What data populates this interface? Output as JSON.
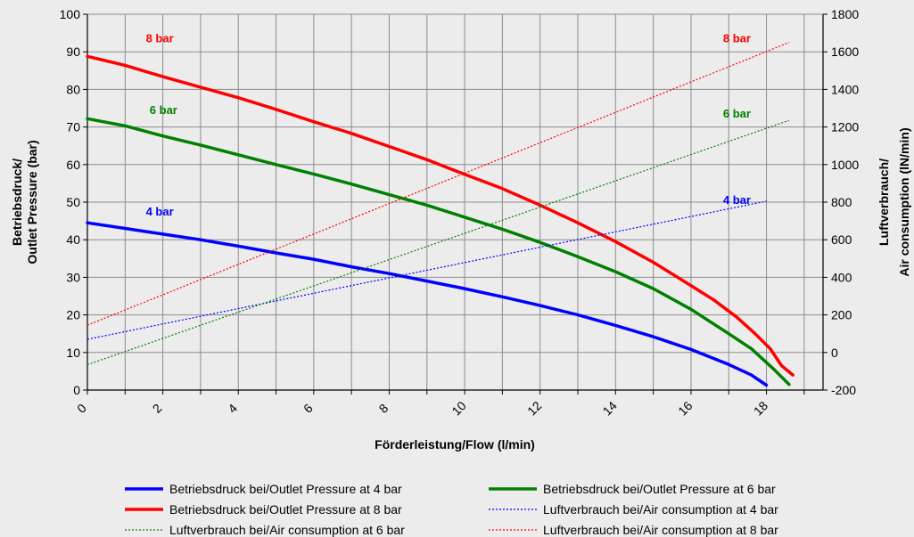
{
  "chart_data": {
    "type": "line",
    "xlabel": "Förderleistung/Flow (l/min)",
    "ylabel_left_line1": "Betriebsdruck/",
    "ylabel_left_line2": "Outlet Pressure (bar)",
    "ylabel_right_line1": "Luftverbrauch/",
    "ylabel_right_line2": "Air consumption (lN/min)",
    "xlim": [
      0,
      19.5
    ],
    "ylim_left": [
      0,
      100
    ],
    "ylim_right": [
      -200,
      1800
    ],
    "x_ticks": [
      "0",
      "2",
      "4",
      "6",
      "8",
      "10",
      "12",
      "14",
      "16",
      "18"
    ],
    "y_ticks_left": [
      "0",
      "10",
      "20",
      "30",
      "40",
      "50",
      "60",
      "70",
      "80",
      "90",
      "100"
    ],
    "y_ticks_right": [
      "-200",
      "0",
      "200",
      "400",
      "600",
      "800",
      "1000",
      "1200",
      "1400",
      "1600",
      "1800"
    ],
    "grid": true,
    "legend_position": "bottom",
    "series": [
      {
        "name": "Betriebsdruck bei/Outlet Pressure at 4 bar",
        "label": "4 bar",
        "axis": "left",
        "style": "solid",
        "color": "#0000ff",
        "points": [
          [
            0,
            44.5
          ],
          [
            1,
            43
          ],
          [
            2,
            41.5
          ],
          [
            3,
            40
          ],
          [
            4,
            38.3
          ],
          [
            5,
            36.5
          ],
          [
            6,
            34.8
          ],
          [
            7,
            32.8
          ],
          [
            8,
            31
          ],
          [
            9,
            29
          ],
          [
            10,
            27
          ],
          [
            11,
            24.8
          ],
          [
            12,
            22.5
          ],
          [
            13,
            20
          ],
          [
            14,
            17.2
          ],
          [
            15,
            14.2
          ],
          [
            16,
            10.8
          ],
          [
            17,
            6.8
          ],
          [
            17.6,
            4
          ],
          [
            18,
            1.3
          ]
        ]
      },
      {
        "name": "Betriebsdruck bei/Outlet Pressure at 6 bar",
        "label": "6 bar",
        "axis": "left",
        "style": "solid",
        "color": "#008000",
        "points": [
          [
            0,
            72.2
          ],
          [
            1,
            70.3
          ],
          [
            2,
            67.6
          ],
          [
            3,
            65.2
          ],
          [
            4,
            62.6
          ],
          [
            5,
            60
          ],
          [
            6,
            57.5
          ],
          [
            7,
            54.8
          ],
          [
            8,
            52
          ],
          [
            9,
            49.2
          ],
          [
            10,
            46
          ],
          [
            11,
            42.8
          ],
          [
            12,
            39.3
          ],
          [
            13,
            35.5
          ],
          [
            14,
            31.5
          ],
          [
            15,
            27
          ],
          [
            16,
            21.5
          ],
          [
            17,
            15
          ],
          [
            17.6,
            11
          ],
          [
            18.2,
            5.5
          ],
          [
            18.6,
            1.5
          ]
        ]
      },
      {
        "name": "Betriebsdruck bei/Outlet Pressure at 8 bar",
        "label": "8 bar",
        "axis": "left",
        "style": "solid",
        "color": "#ff0000",
        "points": [
          [
            0,
            88.8
          ],
          [
            1,
            86.4
          ],
          [
            2,
            83.4
          ],
          [
            3,
            80.6
          ],
          [
            4,
            77.8
          ],
          [
            5,
            74.7
          ],
          [
            6,
            71.4
          ],
          [
            7,
            68.3
          ],
          [
            8,
            64.8
          ],
          [
            9,
            61.3
          ],
          [
            10,
            57.4
          ],
          [
            11,
            53.6
          ],
          [
            12,
            49.2
          ],
          [
            13,
            44.5
          ],
          [
            14,
            39.5
          ],
          [
            15,
            34
          ],
          [
            16,
            27.8
          ],
          [
            16.6,
            24
          ],
          [
            17.2,
            19.5
          ],
          [
            17.7,
            15
          ],
          [
            18.1,
            11
          ],
          [
            18.4,
            6.5
          ],
          [
            18.7,
            4
          ]
        ]
      },
      {
        "name": "Luftverbrauch bei/Air consumption at 4 bar",
        "label": "4 bar",
        "axis": "right",
        "style": "dotted",
        "color": "#0000ff",
        "points": [
          [
            0,
            70
          ],
          [
            18,
            805
          ]
        ]
      },
      {
        "name": "Luftverbrauch bei/Air consumption at 6 bar",
        "label": "6 bar",
        "axis": "right",
        "style": "dotted",
        "color": "#008000",
        "points": [
          [
            0,
            -65
          ],
          [
            18.6,
            1235
          ]
        ]
      },
      {
        "name": "Luftverbrauch bei/Air consumption at 8 bar",
        "label": "8 bar",
        "axis": "right",
        "style": "dotted",
        "color": "#ff0000",
        "points": [
          [
            0,
            145
          ],
          [
            18.6,
            1650
          ]
        ]
      }
    ],
    "series_labels": [
      {
        "text": "8 bar",
        "color": "#ff0000",
        "x": 1.55,
        "y": 92.5
      },
      {
        "text": "6 bar",
        "color": "#008000",
        "x": 1.65,
        "y": 73.5
      },
      {
        "text": "4 bar",
        "color": "#0000ff",
        "x": 1.55,
        "y": 46.5
      },
      {
        "text": "8 bar",
        "color": "#ff0000",
        "x": 16.85,
        "y": 92.5
      },
      {
        "text": "6 bar",
        "color": "#008000",
        "x": 16.85,
        "y": 72.5
      },
      {
        "text": "4 bar",
        "color": "#0000ff",
        "x": 16.85,
        "y": 49.5
      }
    ]
  }
}
